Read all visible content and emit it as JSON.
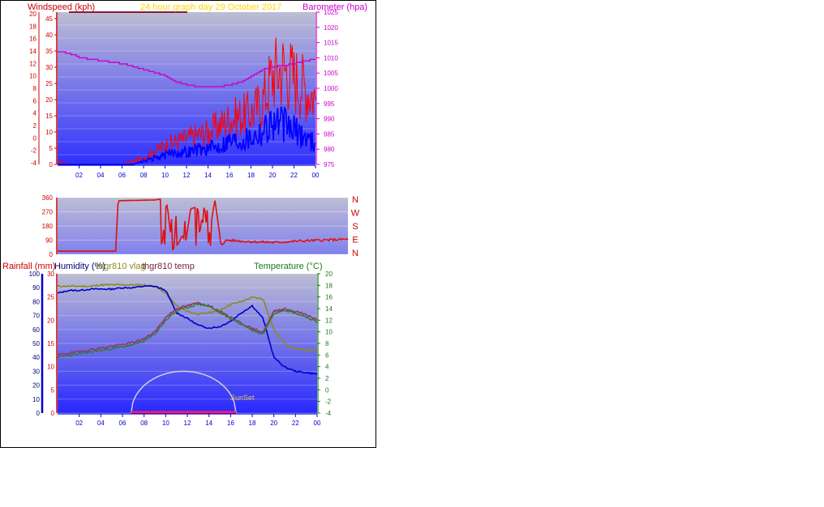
{
  "header": {
    "title": "24 hour graph day   29 October 2017",
    "title_color": "#ffd700"
  },
  "colors": {
    "wind_gust": "#ff0000",
    "wind_avg": "#0000ff",
    "barometer": "#cc00cc",
    "wind_dir": "#e01010",
    "rain": "#cc0000",
    "humidity": "#0000cc",
    "vlag": "#8a8a1e",
    "temp_series": "#993366",
    "temperature": "#2e7d32",
    "sun": "#d8d8d8",
    "plot_top": "#b8b8d8",
    "plot_bottom": "#2020ff"
  },
  "chart_data": [
    {
      "type": "line",
      "id": "wind",
      "ylabel": "Windspeed (kph)",
      "ylabel_right": "Barometer (hpa)",
      "time_ticks": [
        "02",
        "04",
        "06",
        "08",
        "10",
        "12",
        "14",
        "16",
        "18",
        "20",
        "22",
        "00"
      ],
      "kph_ticks": [
        "0",
        "5",
        "10",
        "15",
        "20",
        "25",
        "30",
        "35",
        "40",
        "45"
      ],
      "kph_ylim": [
        0,
        47
      ],
      "secondary_ticks": [
        "-4",
        "-2",
        "0",
        "2",
        "4",
        "6",
        "8",
        "10",
        "12",
        "14",
        "16",
        "18",
        "20"
      ],
      "baro_ticks": [
        "975",
        "980",
        "985",
        "990",
        "995",
        "1000",
        "1005",
        "1010",
        "1015",
        "1020",
        "1025"
      ],
      "baro_ylim": [
        975,
        1025
      ],
      "x_hours": [
        0,
        1,
        2,
        3,
        4,
        5,
        6,
        7,
        8,
        9,
        10,
        11,
        12,
        13,
        14,
        15,
        16,
        17,
        18,
        19,
        20,
        21,
        22,
        23,
        24
      ],
      "series": [
        {
          "name": "Barometer (hpa)",
          "values": [
            1012,
            1011.5,
            1010,
            1009.5,
            1009,
            1008.5,
            1008,
            1007,
            1006,
            1005,
            1004,
            1002,
            1001,
            1000.5,
            1000.5,
            1000.5,
            1001,
            1002,
            1004,
            1006,
            1007,
            1007.5,
            1008,
            1009,
            1009.5
          ]
        },
        {
          "values": [
            1,
            0,
            0,
            0,
            0,
            0,
            0,
            1,
            2,
            4,
            6,
            7,
            8,
            9,
            10,
            12,
            14,
            15,
            16,
            19,
            28,
            30,
            27,
            24,
            21
          ]
        },
        {
          "values": [
            0,
            0,
            0,
            0,
            0,
            0,
            0,
            0,
            1,
            2,
            3,
            4,
            4,
            5,
            5,
            6,
            8,
            8,
            9,
            11,
            14,
            13,
            11,
            9,
            7
          ]
        }
      ]
    },
    {
      "type": "line",
      "id": "direction",
      "ylim": [
        0,
        360
      ],
      "ticks": [
        "0",
        "90",
        "180",
        "270",
        "360"
      ],
      "compass": [
        "N",
        "W",
        "S",
        "E",
        "N"
      ],
      "x_hours": [
        0,
        4.8,
        5.0,
        8.0,
        8.5,
        8.6,
        9.0,
        9.5,
        10.0,
        10.3,
        10.6,
        11.0,
        11.5,
        12.0,
        12.3,
        12.6,
        13.0,
        13.5,
        14.0,
        15.0,
        16.0,
        18.0,
        20.0,
        22.0,
        24.0
      ],
      "series": [
        {
          "values": [
            20,
            20,
            340,
            345,
            350,
            20,
            340,
            30,
            70,
            120,
            80,
            290,
            300,
            200,
            320,
            150,
            350,
            60,
            90,
            85,
            80,
            75,
            85,
            90,
            95
          ]
        }
      ]
    },
    {
      "type": "line",
      "id": "climate",
      "ylabels": [
        "Rainfall (mm)",
        "Humidity (%)",
        "thgr810 vlag",
        "thgr810 temp"
      ],
      "ylabel_right": "Temperature (°C)",
      "time_ticks": [
        "02",
        "04",
        "06",
        "08",
        "10",
        "12",
        "14",
        "16",
        "18",
        "20",
        "22",
        "00"
      ],
      "humidity_ticks": [
        "0",
        "10",
        "20",
        "30",
        "40",
        "50",
        "60",
        "70",
        "80",
        "90",
        "100"
      ],
      "rain_ticks": [
        "0",
        "5",
        "10",
        "15",
        "20",
        "25",
        "30"
      ],
      "temp_ticks": [
        "-4",
        "-2",
        "0",
        "2",
        "4",
        "6",
        "8",
        "10",
        "12",
        "14",
        "16",
        "18",
        "20"
      ],
      "humidity_ylim": [
        0,
        100
      ],
      "temp_ylim": [
        -4,
        20
      ],
      "x_hours": [
        0,
        1,
        2,
        3,
        4,
        5,
        6,
        7,
        8,
        9,
        10,
        11,
        12,
        13,
        14,
        15,
        16,
        17,
        18,
        19,
        20,
        21,
        22,
        23,
        24
      ],
      "series": [
        {
          "name": "Humidity (%)",
          "values": [
            86,
            88,
            88,
            89,
            89,
            89,
            90,
            90,
            91,
            91,
            88,
            72,
            68,
            63,
            61,
            62,
            66,
            72,
            77,
            68,
            40,
            33,
            30,
            29,
            28
          ]
        },
        {
          "name": "thgr810 vlag",
          "values": [
            91,
            91,
            91,
            91,
            92,
            92,
            92,
            92,
            92,
            91,
            86,
            77,
            73,
            71,
            72,
            74,
            78,
            80,
            83,
            82,
            60,
            50,
            46,
            45,
            45
          ]
        },
        {
          "name": "thgr810 temp",
          "values": [
            6.0,
            6.3,
            6.6,
            6.9,
            7.2,
            7.5,
            7.8,
            8.2,
            8.8,
            10.0,
            12.5,
            14.0,
            14.5,
            15.0,
            14.5,
            13.5,
            12.5,
            11.5,
            10.5,
            10.0,
            13.5,
            14.0,
            13.5,
            13.0,
            12.0
          ]
        },
        {
          "name": "Temperature (°C)",
          "values": [
            5.6,
            5.9,
            6.2,
            6.5,
            6.8,
            7.1,
            7.4,
            7.8,
            8.4,
            9.6,
            12.0,
            13.6,
            14.2,
            14.8,
            14.4,
            13.3,
            12.3,
            11.3,
            10.3,
            9.6,
            13.2,
            13.8,
            13.2,
            12.6,
            11.6
          ]
        }
      ],
      "rainfall_mm": [
        0,
        0,
        0,
        0,
        0,
        0,
        0,
        0,
        0,
        0,
        0,
        0,
        0,
        0,
        0,
        0,
        0,
        0,
        0,
        0,
        0,
        0,
        0,
        0,
        0
      ],
      "sun": {
        "label": "SunSet",
        "daylight_hours": [
          6.8,
          16.5
        ],
        "peak_humidity_scale": 30
      }
    }
  ]
}
